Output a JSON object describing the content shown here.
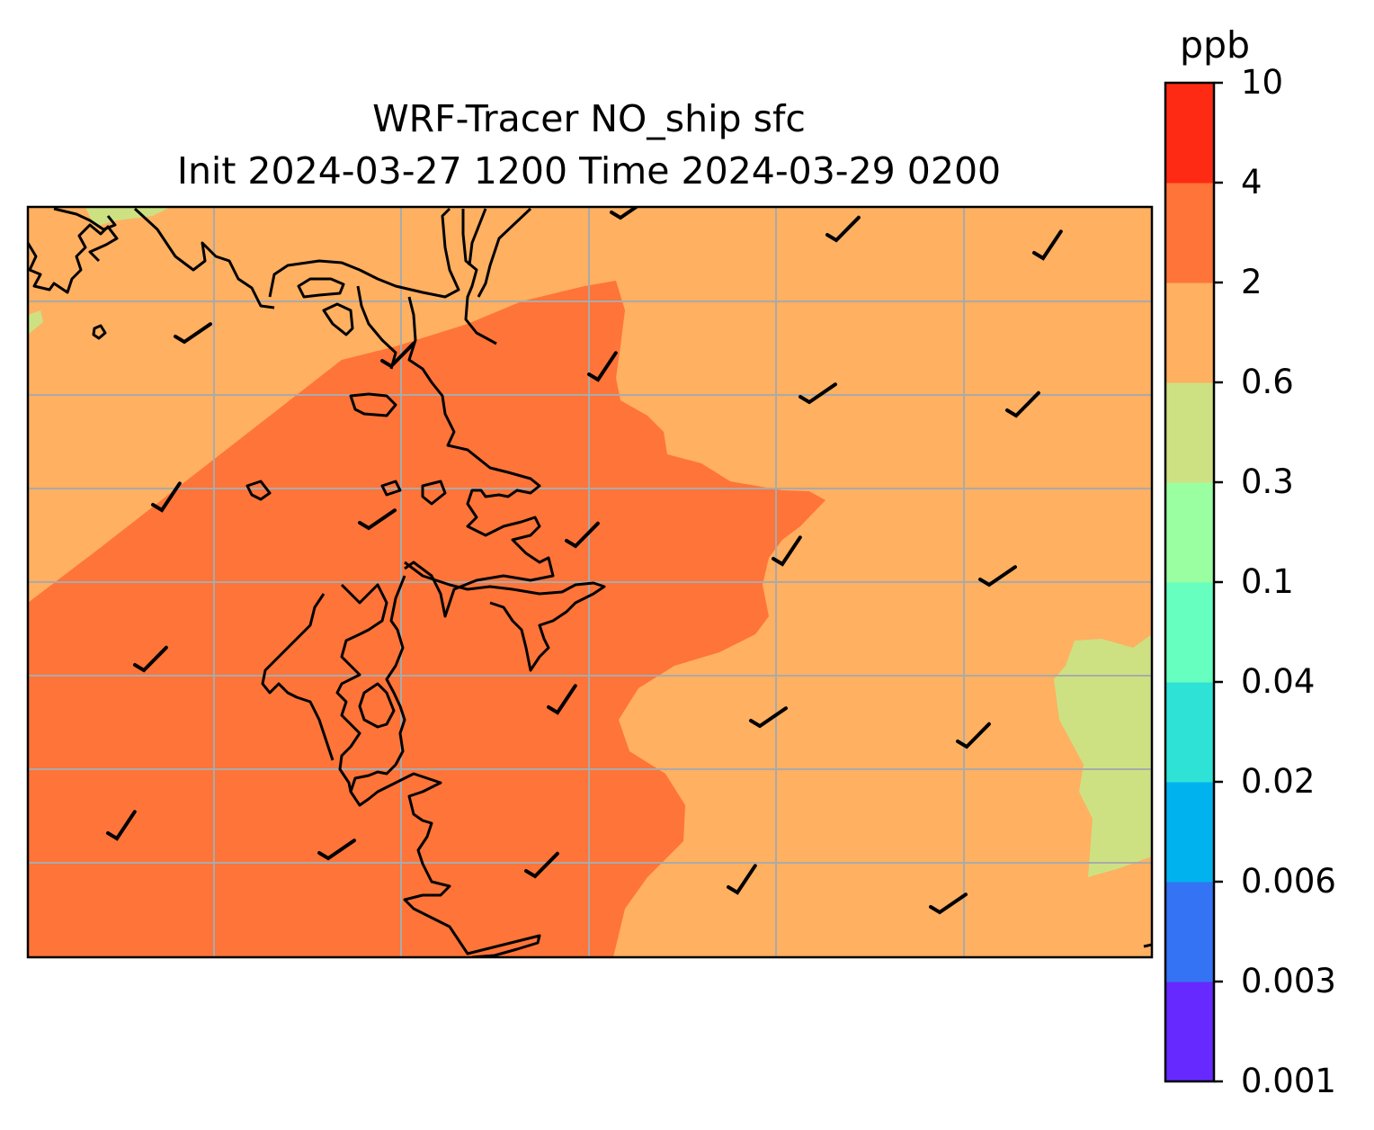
{
  "title": {
    "line1": "WRF-Tracer NO_ship sfc",
    "line2": "Init 2024-03-27 1200 Time 2024-03-29 0200"
  },
  "colorbar": {
    "units": "ppb",
    "levels": [
      {
        "label": "0.001",
        "color": "#6629ff"
      },
      {
        "label": "0.003",
        "color": "#3473f4"
      },
      {
        "label": "0.006",
        "color": "#00b3ee"
      },
      {
        "label": "0.02",
        "color": "#2fe2d6"
      },
      {
        "label": "0.04",
        "color": "#66ffc0"
      },
      {
        "label": "0.1",
        "color": "#99ffa1"
      },
      {
        "label": "0.3",
        "color": "#cde183"
      },
      {
        "label": "0.6",
        "color": "#ffb060"
      },
      {
        "label": "2",
        "color": "#ff7438"
      },
      {
        "label": "4",
        "color": "#ff2a14"
      },
      {
        "label": "10",
        "color": null
      }
    ]
  },
  "map": {
    "field_colors": {
      "background": "#ffb060",
      "high_plume": "#ff7438",
      "low_region": "#cde183"
    },
    "gridline_color": "#aaaaaa",
    "coastline_color": "#000000",
    "wind_barbs": 20
  }
}
